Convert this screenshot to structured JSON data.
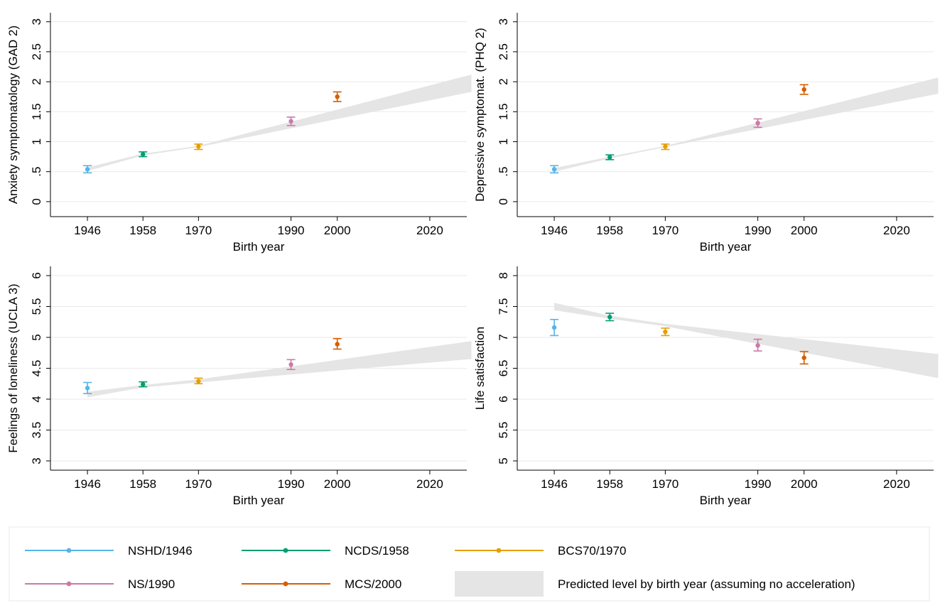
{
  "chart_data": [
    {
      "type": "scatter",
      "ylabel": "Anxiety symptomatology (GAD 2)",
      "xlabel": "Birth year",
      "xticks": [
        1946,
        1958,
        1970,
        1990,
        2000,
        2020
      ],
      "xlim": [
        1938,
        2028
      ],
      "yticks": [
        0,
        0.5,
        1,
        1.5,
        2,
        2.5,
        3
      ],
      "ytick_labels": [
        "0",
        ".5",
        "1",
        "1.5",
        "2",
        "2.5",
        "3"
      ],
      "ylim": [
        -0.25,
        3.15
      ],
      "points": [
        {
          "x": 1946,
          "y": 0.54,
          "lo": 0.48,
          "hi": 0.6
        },
        {
          "x": 1958,
          "y": 0.79,
          "lo": 0.75,
          "hi": 0.83
        },
        {
          "x": 1970,
          "y": 0.92,
          "lo": 0.87,
          "hi": 0.96
        },
        {
          "x": 1990,
          "y": 1.34,
          "lo": 1.27,
          "hi": 1.41
        },
        {
          "x": 2000,
          "y": 1.75,
          "lo": 1.67,
          "hi": 1.83
        }
      ],
      "band": {
        "x": [
          1946,
          1958,
          1970,
          2029
        ],
        "lo": [
          0.51,
          0.77,
          0.91,
          1.83
        ],
        "hi": [
          0.57,
          0.8,
          0.93,
          2.12
        ]
      }
    },
    {
      "type": "scatter",
      "ylabel": "Depressive symptomat. (PHQ 2)",
      "xlabel": "Birth year",
      "xticks": [
        1946,
        1958,
        1970,
        1990,
        2000,
        2020
      ],
      "xlim": [
        1938,
        2028
      ],
      "yticks": [
        0,
        0.5,
        1,
        1.5,
        2,
        2.5,
        3
      ],
      "ytick_labels": [
        "0",
        ".5",
        "1",
        "1.5",
        "2",
        "2.5",
        "3"
      ],
      "ylim": [
        -0.25,
        3.15
      ],
      "points": [
        {
          "x": 1946,
          "y": 0.54,
          "lo": 0.48,
          "hi": 0.6
        },
        {
          "x": 1958,
          "y": 0.74,
          "lo": 0.7,
          "hi": 0.78
        },
        {
          "x": 1970,
          "y": 0.92,
          "lo": 0.87,
          "hi": 0.96
        },
        {
          "x": 1990,
          "y": 1.31,
          "lo": 1.24,
          "hi": 1.38
        },
        {
          "x": 2000,
          "y": 1.87,
          "lo": 1.79,
          "hi": 1.95
        }
      ],
      "band": {
        "x": [
          1946,
          1958,
          1970,
          2029
        ],
        "lo": [
          0.5,
          0.72,
          0.91,
          1.8
        ],
        "hi": [
          0.56,
          0.75,
          0.93,
          2.07
        ]
      }
    },
    {
      "type": "scatter",
      "ylabel": "Feelings of loneliness (UCLA 3)",
      "xlabel": "Birth year",
      "xticks": [
        1946,
        1958,
        1970,
        1990,
        2000,
        2020
      ],
      "xlim": [
        1938,
        2028
      ],
      "yticks": [
        3,
        3.5,
        4,
        4.5,
        5,
        5.5,
        6
      ],
      "ytick_labels": [
        "3",
        "3.5",
        "4",
        "4.5",
        "5",
        "5.5",
        "6"
      ],
      "ylim": [
        2.85,
        6.15
      ],
      "points": [
        {
          "x": 1946,
          "y": 4.18,
          "lo": 4.09,
          "hi": 4.27
        },
        {
          "x": 1958,
          "y": 4.24,
          "lo": 4.2,
          "hi": 4.28
        },
        {
          "x": 1970,
          "y": 4.29,
          "lo": 4.25,
          "hi": 4.34
        },
        {
          "x": 1990,
          "y": 4.56,
          "lo": 4.48,
          "hi": 4.64
        },
        {
          "x": 2000,
          "y": 4.89,
          "lo": 4.81,
          "hi": 4.98
        }
      ],
      "band": {
        "x": [
          1946,
          1958,
          1970,
          2029
        ],
        "lo": [
          4.03,
          4.19,
          4.27,
          4.65
        ],
        "hi": [
          4.12,
          4.23,
          4.32,
          4.94
        ]
      }
    },
    {
      "type": "scatter",
      "ylabel": "Life satisfaction",
      "xlabel": "Birth year",
      "xticks": [
        1946,
        1958,
        1970,
        1990,
        2000,
        2020
      ],
      "xlim": [
        1938,
        2028
      ],
      "yticks": [
        5,
        5.5,
        6,
        6.5,
        7,
        7.5,
        8
      ],
      "ytick_labels": [
        "5",
        "5.5",
        "6",
        "6.5",
        "7",
        "7.5",
        "8"
      ],
      "ylim": [
        4.85,
        8.15
      ],
      "points": [
        {
          "x": 1946,
          "y": 7.16,
          "lo": 7.03,
          "hi": 7.29
        },
        {
          "x": 1958,
          "y": 7.33,
          "lo": 7.27,
          "hi": 7.39
        },
        {
          "x": 1970,
          "y": 7.09,
          "lo": 7.03,
          "hi": 7.15
        },
        {
          "x": 1990,
          "y": 6.87,
          "lo": 6.78,
          "hi": 6.97
        },
        {
          "x": 2000,
          "y": 6.67,
          "lo": 6.57,
          "hi": 6.77
        }
      ],
      "band": {
        "x": [
          1946,
          1958,
          1970,
          2029
        ],
        "lo": [
          7.44,
          7.3,
          7.18,
          6.34
        ],
        "hi": [
          7.56,
          7.35,
          7.22,
          6.73
        ]
      }
    }
  ],
  "series_colors": [
    "#56b4e9",
    "#009e73",
    "#e69f00",
    "#cc79a7",
    "#d55e00"
  ],
  "band_color": "#e5e5e5",
  "legend": {
    "items": [
      {
        "label": "NSHD/1946",
        "color": "#56b4e9",
        "kind": "line"
      },
      {
        "label": "NCDS/1958",
        "color": "#009e73",
        "kind": "line"
      },
      {
        "label": "BCS70/1970",
        "color": "#e69f00",
        "kind": "line"
      },
      {
        "label": "NS/1990",
        "color": "#cc79a7",
        "kind": "line"
      },
      {
        "label": "MCS/2000",
        "color": "#d55e00",
        "kind": "line"
      },
      {
        "label": "Predicted level by birth year (assuming no acceleration)",
        "color": "#e5e5e5",
        "kind": "band"
      }
    ]
  }
}
